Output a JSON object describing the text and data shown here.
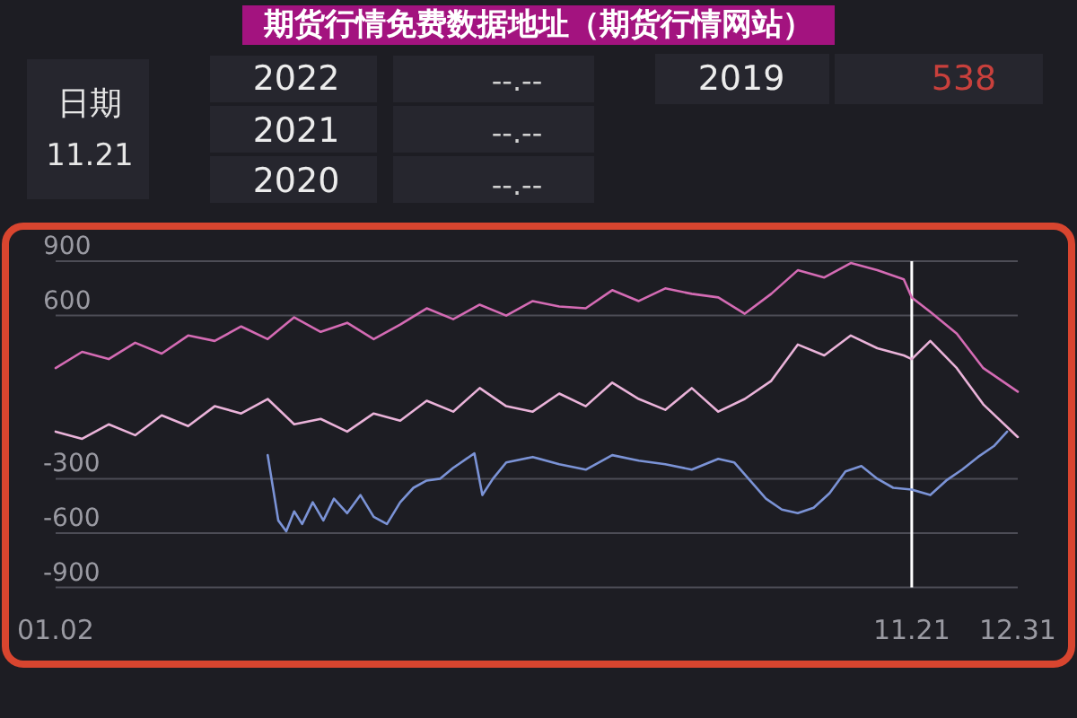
{
  "chart_data": {
    "type": "line",
    "title": "期货行情免费数据地址（期货行情网站）",
    "annotations": [
      "日期",
      "11.21",
      "2022",
      "--.--",
      "2021",
      "--.--",
      "2020",
      "--.--",
      "2019",
      "538"
    ],
    "xlim": [
      "--01-02",
      "--12-31"
    ],
    "xticks": [
      {
        "value": "--01-02",
        "label": "01.02"
      },
      {
        "value": "--11-21",
        "label": "11.21"
      },
      {
        "value": "--12-31",
        "label": "12.31"
      }
    ],
    "ylim": [
      -900,
      900
    ],
    "yticks": [
      900,
      600,
      -300,
      -600,
      -900
    ],
    "grid": "y",
    "ref_lines": [
      {
        "axis": "x",
        "value": "--11-21",
        "color": "#ffffff"
      }
    ],
    "x": [
      "--01-02",
      "--01-12",
      "--01-22",
      "--02-01",
      "--02-11",
      "--02-21",
      "--03-03",
      "--03-13",
      "--03-23",
      "--04-02",
      "--04-12",
      "--04-22",
      "--05-02",
      "--05-12",
      "--05-22",
      "--06-01",
      "--06-11",
      "--06-21",
      "--07-01",
      "--07-11",
      "--07-21",
      "--07-31",
      "--08-10",
      "--08-20",
      "--08-30",
      "--09-09",
      "--09-19",
      "--09-29",
      "--10-09",
      "--10-19",
      "--10-29",
      "--11-08",
      "--11-18",
      "--11-21",
      "--11-28",
      "--12-08",
      "--12-18",
      "--12-31"
    ],
    "series": [
      {
        "color": "#d46bb4",
        "values": [
          310,
          400,
          360,
          450,
          390,
          490,
          460,
          540,
          470,
          590,
          510,
          560,
          470,
          550,
          640,
          580,
          660,
          600,
          680,
          650,
          640,
          740,
          680,
          750,
          720,
          700,
          610,
          720,
          850,
          810,
          890,
          850,
          800,
          700,
          620,
          500,
          310,
          180
        ]
      },
      {
        "color": "#eab3d9",
        "values": [
          -40,
          -80,
          0,
          -60,
          50,
          -10,
          100,
          60,
          140,
          0,
          30,
          -40,
          60,
          20,
          130,
          70,
          200,
          100,
          70,
          170,
          100,
          230,
          140,
          80,
          200,
          70,
          140,
          240,
          440,
          380,
          490,
          420,
          380,
          360,
          460,
          310,
          110,
          -70
        ]
      },
      {
        "color": "#7b93d6",
        "x": [
          "--03-23",
          "--03-27",
          "--03-30",
          "--04-02",
          "--04-05",
          "--04-09",
          "--04-13",
          "--04-17",
          "--04-22",
          "--04-27",
          "--05-02",
          "--05-07",
          "--05-12",
          "--05-17",
          "--05-22",
          "--05-27",
          "--06-01",
          "--06-06",
          "--06-09",
          "--06-12",
          "--06-16",
          "--06-21",
          "--07-01",
          "--07-11",
          "--07-21",
          "--07-31",
          "--08-10",
          "--08-20",
          "--08-30",
          "--09-09",
          "--09-15",
          "--09-21",
          "--09-27",
          "--10-03",
          "--10-09",
          "--10-15",
          "--10-21",
          "--10-27",
          "--11-02",
          "--11-08",
          "--11-14",
          "--11-21",
          "--11-28",
          "--12-04",
          "--12-10",
          "--12-16",
          "--12-22",
          "--12-27"
        ],
        "values": [
          -170,
          -530,
          -590,
          -480,
          -550,
          -430,
          -530,
          -410,
          -490,
          -390,
          -510,
          -550,
          -430,
          -350,
          -310,
          -300,
          -240,
          -190,
          -160,
          -390,
          -300,
          -210,
          -180,
          -220,
          -250,
          -170,
          -200,
          -220,
          -250,
          -190,
          -210,
          -310,
          -410,
          -470,
          -490,
          -460,
          -380,
          -260,
          -230,
          -300,
          -350,
          -360,
          -390,
          -310,
          -250,
          -180,
          -120,
          -40
        ]
      }
    ]
  }
}
